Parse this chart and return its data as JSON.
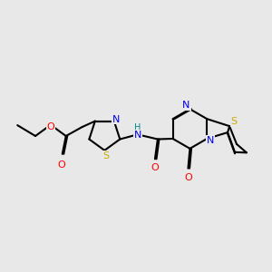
{
  "background_color": "#e8e8e8",
  "bond_color": "#000000",
  "bond_width": 1.5,
  "atom_colors": {
    "N": "#0000ee",
    "O": "#ff0000",
    "S": "#ccaa00",
    "H": "#008888",
    "C": "#000000"
  },
  "font_size": 8,
  "fig_width": 3.0,
  "fig_height": 3.0,
  "dpi": 100
}
